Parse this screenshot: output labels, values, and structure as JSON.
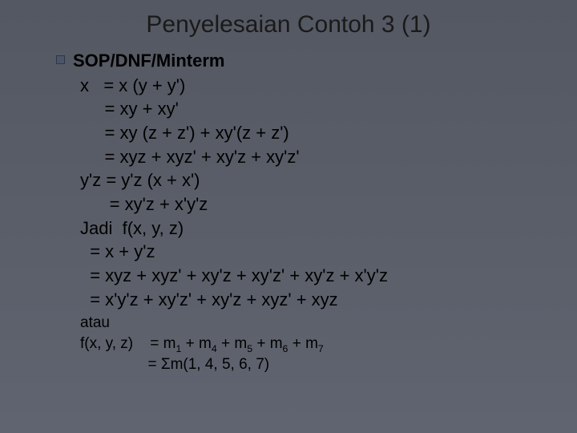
{
  "title": "Penyelesaian Contoh 3 (1)",
  "heading": "SOP/DNF/Minterm",
  "lines": [
    "x   = x (y + y')",
    "     = xy + xy'",
    "     = xy (z + z') + xy'(z + z')",
    "     = xyz + xyz' + xy'z + xy'z'",
    "y'z = y'z (x + x')",
    "      = xy'z + x'y'z",
    "Jadi  f(x, y, z)",
    "  = x + y'z",
    "  = xyz + xyz' + xy'z + xy'z' + xy'z + x'y'z",
    "  = x'y'z + xy'z' + xy'z + xyz' + xyz"
  ],
  "small": {
    "atau": "atau",
    "fxyz_label": "f(x, y, z)",
    "m_terms": [
      "1",
      "4",
      "5",
      "6",
      "7"
    ],
    "sigma_args": "m(1, 4, 5, 6, 7)"
  },
  "colors": {
    "background_top": "#545862",
    "background_bottom": "#606470",
    "text": "#000000",
    "bullet_fill": "#4a5568",
    "bullet_border": "#2d3748"
  },
  "typography": {
    "title_fontsize": 30,
    "body_fontsize": 22,
    "small_fontsize": 19,
    "font_family": "Verdana"
  }
}
